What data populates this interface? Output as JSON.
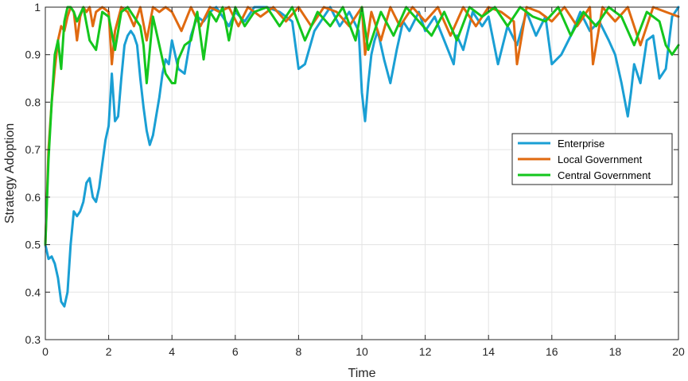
{
  "chart_data": {
    "type": "line",
    "title": "",
    "xlabel": "Time",
    "ylabel": "Strategy Adoption",
    "xlim": [
      0,
      20
    ],
    "ylim": [
      0.3,
      1
    ],
    "xticks": [
      0,
      2,
      4,
      6,
      8,
      10,
      12,
      14,
      16,
      18,
      20
    ],
    "yticks": [
      0.3,
      0.4,
      0.5,
      0.6,
      0.7,
      0.8,
      0.9,
      1
    ],
    "ytick_labels": [
      "0.3",
      "0.4",
      "0.5",
      "0.6",
      "0.7",
      "0.8",
      "0.9",
      "1"
    ],
    "grid": true,
    "legend_position": "right",
    "series": [
      {
        "name": "Enterprise",
        "color": "#1a9fd4",
        "x": [
          0,
          0.1,
          0.2,
          0.3,
          0.4,
          0.5,
          0.6,
          0.7,
          0.8,
          0.9,
          1.0,
          1.1,
          1.2,
          1.3,
          1.4,
          1.5,
          1.6,
          1.7,
          1.8,
          1.9,
          2.0,
          2.1,
          2.2,
          2.3,
          2.4,
          2.5,
          2.6,
          2.7,
          2.8,
          2.9,
          3.0,
          3.1,
          3.2,
          3.3,
          3.4,
          3.5,
          3.6,
          3.7,
          3.8,
          3.9,
          4.0,
          4.2,
          4.4,
          4.6,
          4.8,
          5.0,
          5.2,
          5.4,
          5.6,
          5.8,
          6.0,
          6.3,
          6.6,
          7.0,
          7.4,
          7.8,
          8.0,
          8.2,
          8.5,
          8.8,
          9.0,
          9.3,
          9.6,
          9.9,
          10.0,
          10.1,
          10.2,
          10.3,
          10.4,
          10.5,
          10.7,
          10.9,
          11.1,
          11.3,
          11.5,
          11.8,
          12.0,
          12.3,
          12.6,
          12.9,
          13.0,
          13.2,
          13.5,
          13.8,
          14.0,
          14.3,
          14.6,
          14.9,
          15.2,
          15.5,
          15.8,
          16.0,
          16.3,
          16.6,
          16.9,
          17.2,
          17.5,
          17.8,
          18.0,
          18.2,
          18.4,
          18.5,
          18.6,
          18.8,
          19.0,
          19.2,
          19.4,
          19.6,
          19.8,
          20.0
        ],
        "y": [
          0.5,
          0.47,
          0.475,
          0.46,
          0.43,
          0.38,
          0.37,
          0.4,
          0.5,
          0.57,
          0.56,
          0.57,
          0.59,
          0.63,
          0.64,
          0.6,
          0.59,
          0.62,
          0.67,
          0.72,
          0.75,
          0.86,
          0.76,
          0.77,
          0.85,
          0.92,
          0.94,
          0.95,
          0.94,
          0.92,
          0.85,
          0.79,
          0.74,
          0.71,
          0.73,
          0.77,
          0.81,
          0.86,
          0.89,
          0.88,
          0.93,
          0.87,
          0.86,
          0.94,
          0.98,
          0.97,
          0.99,
          1.0,
          0.98,
          0.96,
          0.99,
          0.97,
          1.0,
          1.0,
          0.99,
          0.97,
          0.87,
          0.88,
          0.95,
          0.98,
          1.0,
          0.96,
          0.99,
          0.95,
          0.82,
          0.76,
          0.84,
          0.9,
          0.93,
          0.95,
          0.89,
          0.84,
          0.91,
          0.97,
          0.95,
          0.99,
          0.95,
          0.98,
          0.93,
          0.88,
          0.94,
          0.91,
          0.99,
          0.96,
          0.98,
          0.88,
          0.96,
          0.92,
          0.99,
          0.94,
          0.98,
          0.88,
          0.9,
          0.94,
          0.99,
          0.95,
          0.97,
          0.93,
          0.9,
          0.84,
          0.77,
          0.82,
          0.88,
          0.84,
          0.93,
          0.94,
          0.85,
          0.87,
          0.98,
          1.0
        ]
      },
      {
        "name": "Local Government",
        "color": "#e06a10",
        "x": [
          0,
          0.1,
          0.2,
          0.3,
          0.4,
          0.5,
          0.6,
          0.7,
          0.8,
          0.9,
          1.0,
          1.1,
          1.2,
          1.3,
          1.4,
          1.5,
          1.6,
          1.8,
          2.0,
          2.1,
          2.2,
          2.4,
          2.6,
          2.8,
          3.0,
          3.2,
          3.4,
          3.6,
          3.8,
          4.0,
          4.3,
          4.6,
          4.9,
          5.2,
          5.5,
          5.8,
          6.1,
          6.4,
          6.8,
          7.2,
          7.6,
          8.0,
          8.4,
          8.8,
          9.2,
          9.6,
          10.0,
          10.1,
          10.3,
          10.6,
          10.9,
          11.2,
          11.6,
          12.0,
          12.4,
          12.8,
          13.2,
          13.6,
          14.0,
          14.4,
          14.8,
          14.9,
          15.2,
          15.6,
          16.0,
          16.4,
          16.8,
          17.2,
          17.3,
          17.6,
          18.0,
          18.4,
          18.8,
          19.2,
          19.6,
          20.0
        ],
        "y": [
          0.5,
          0.7,
          0.8,
          0.87,
          0.93,
          0.96,
          0.95,
          0.98,
          1.0,
          0.99,
          0.93,
          0.98,
          1.0,
          0.99,
          1.0,
          0.96,
          0.99,
          1.0,
          0.99,
          0.88,
          0.95,
          1.0,
          0.99,
          0.96,
          1.0,
          0.93,
          1.0,
          0.99,
          1.0,
          0.99,
          0.95,
          1.0,
          0.96,
          1.0,
          0.99,
          1.0,
          0.96,
          1.0,
          0.98,
          1.0,
          0.97,
          1.0,
          0.96,
          1.0,
          0.99,
          0.96,
          1.0,
          0.9,
          0.99,
          0.93,
          1.0,
          0.96,
          1.0,
          0.97,
          1.0,
          0.94,
          1.0,
          0.96,
          1.0,
          0.99,
          0.97,
          0.88,
          1.0,
          0.99,
          0.97,
          1.0,
          0.96,
          1.0,
          0.88,
          1.0,
          0.97,
          1.0,
          0.92,
          1.0,
          0.99,
          0.98
        ]
      },
      {
        "name": "Central Government",
        "color": "#14c61d",
        "x": [
          0,
          0.1,
          0.2,
          0.3,
          0.4,
          0.5,
          0.6,
          0.7,
          0.8,
          0.9,
          1.0,
          1.2,
          1.4,
          1.6,
          1.8,
          2.0,
          2.2,
          2.4,
          2.6,
          2.8,
          3.0,
          3.1,
          3.2,
          3.4,
          3.6,
          3.8,
          4.0,
          4.1,
          4.2,
          4.4,
          4.6,
          4.8,
          5.0,
          5.2,
          5.4,
          5.6,
          5.8,
          6.0,
          6.3,
          6.6,
          7.0,
          7.4,
          7.8,
          8.2,
          8.6,
          9.0,
          9.4,
          9.8,
          10.0,
          10.2,
          10.6,
          11.0,
          11.4,
          11.8,
          12.2,
          12.6,
          13.0,
          13.4,
          13.8,
          14.2,
          14.6,
          15.0,
          15.4,
          15.8,
          16.2,
          16.6,
          17.0,
          17.4,
          17.8,
          18.2,
          18.6,
          19.0,
          19.4,
          19.6,
          19.8,
          20.0
        ],
        "y": [
          0.5,
          0.68,
          0.8,
          0.9,
          0.93,
          0.87,
          0.97,
          1.0,
          1.0,
          0.99,
          0.97,
          1.0,
          0.93,
          0.91,
          0.99,
          0.98,
          0.91,
          0.99,
          1.0,
          0.98,
          0.96,
          0.92,
          0.84,
          0.98,
          0.92,
          0.86,
          0.84,
          0.84,
          0.89,
          0.92,
          0.93,
          0.99,
          0.89,
          0.99,
          0.97,
          1.0,
          0.93,
          1.0,
          0.96,
          0.99,
          1.0,
          0.96,
          1.0,
          0.93,
          0.99,
          0.96,
          1.0,
          0.93,
          1.0,
          0.91,
          0.99,
          0.94,
          1.0,
          0.97,
          0.94,
          0.99,
          0.93,
          1.0,
          0.98,
          1.0,
          0.96,
          1.0,
          0.98,
          0.97,
          1.0,
          0.94,
          0.99,
          0.96,
          1.0,
          0.98,
          0.92,
          0.99,
          0.97,
          0.92,
          0.9,
          0.92
        ]
      }
    ]
  }
}
